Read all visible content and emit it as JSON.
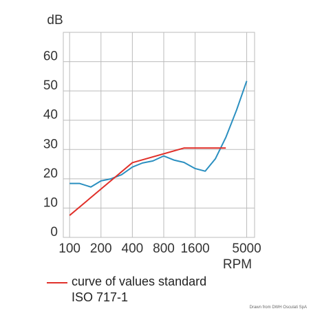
{
  "chart_data": {
    "type": "line",
    "y_label": "dB",
    "x_label": "RPM",
    "x": [
      100,
      125,
      160,
      200,
      250,
      315,
      400,
      500,
      630,
      800,
      1000,
      1250,
      1600,
      2000,
      2500,
      3150,
      4000,
      5000
    ],
    "x_scale": "log",
    "xlim": [
      87,
      5950
    ],
    "xticks": [
      100,
      200,
      400,
      800,
      1600,
      5000
    ],
    "ylim": [
      0,
      70
    ],
    "yticks": [
      0,
      10,
      20,
      30,
      40,
      50,
      60
    ],
    "grid": true,
    "series": [
      {
        "color": "#2a8fc0",
        "values": [
          18.4,
          18.4,
          17.2,
          19.3,
          20,
          21.4,
          24,
          25.4,
          26.1,
          27.8,
          26.4,
          25.6,
          23.5,
          22.6,
          26.8,
          34.1,
          43.5,
          53.4
        ]
      },
      {
        "name": "curve of values standard ISO 717-1",
        "color": "#e0302a",
        "values": [
          7.5,
          null,
          null,
          null,
          null,
          null,
          25.5,
          null,
          null,
          null,
          null,
          30.5,
          null,
          null,
          null,
          30.5,
          null,
          null
        ]
      }
    ],
    "credit": "Drawn from DWH Osculati SpA"
  }
}
